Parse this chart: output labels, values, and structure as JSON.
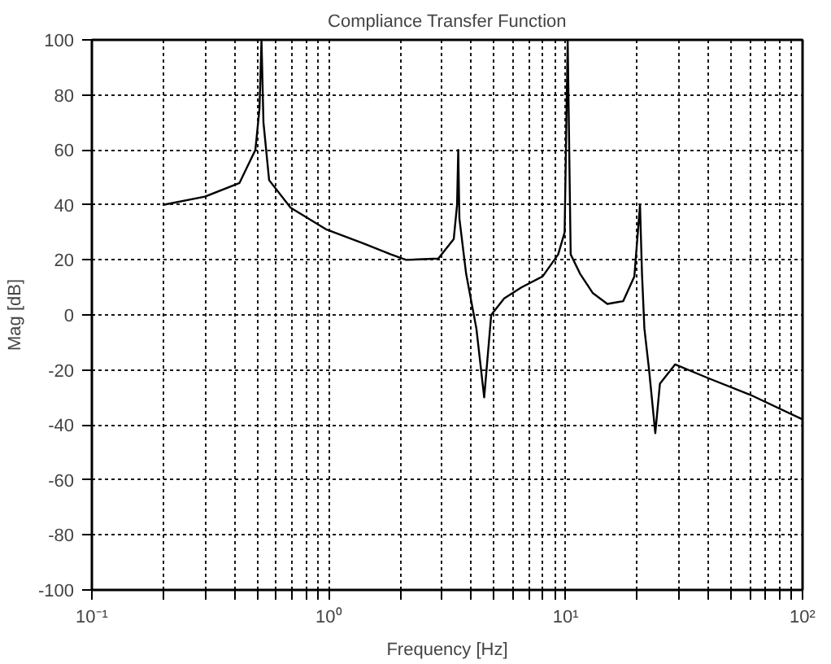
{
  "chart_data": {
    "type": "line",
    "title": "Compliance Transfer Function",
    "xlabel": "Frequency [Hz]",
    "ylabel": "Mag [dB]",
    "log": "x",
    "grid": true,
    "line_style": "solid",
    "xlim": [
      0.1,
      100
    ],
    "ylim": [
      -100,
      100
    ],
    "xticks": [
      {
        "value": 0.1,
        "label": "10⁻¹"
      },
      {
        "value": 0.2,
        "label": null
      },
      {
        "value": 0.3,
        "label": null
      },
      {
        "value": 0.4,
        "label": null
      },
      {
        "value": 0.5,
        "label": null
      },
      {
        "value": 0.6,
        "label": null
      },
      {
        "value": 0.7,
        "label": null
      },
      {
        "value": 0.8,
        "label": null
      },
      {
        "value": 0.9,
        "label": null
      },
      {
        "value": 1,
        "label": "10⁰"
      },
      {
        "value": 2,
        "label": null
      },
      {
        "value": 3,
        "label": null
      },
      {
        "value": 4,
        "label": null
      },
      {
        "value": 5,
        "label": null
      },
      {
        "value": 6,
        "label": null
      },
      {
        "value": 7,
        "label": null
      },
      {
        "value": 8,
        "label": null
      },
      {
        "value": 9,
        "label": null
      },
      {
        "value": 10,
        "label": "10¹"
      },
      {
        "value": 20,
        "label": null
      },
      {
        "value": 30,
        "label": null
      },
      {
        "value": 40,
        "label": null
      },
      {
        "value": 50,
        "label": null
      },
      {
        "value": 60,
        "label": null
      },
      {
        "value": 70,
        "label": null
      },
      {
        "value": 80,
        "label": null
      },
      {
        "value": 90,
        "label": null
      },
      {
        "value": 100,
        "label": "10²"
      }
    ],
    "yticks": [
      -100,
      -80,
      -60,
      -40,
      -20,
      0,
      20,
      40,
      60,
      80,
      100
    ],
    "series": [
      {
        "color": "#000000",
        "x": [
          0.2,
          0.3,
          0.42,
          0.49,
          0.51,
          0.52,
          0.53,
          0.56,
          0.69,
          0.98,
          1.4,
          1.83,
          2.12,
          2.9,
          3.37,
          3.48,
          3.52,
          3.56,
          3.8,
          4.2,
          4.53,
          4.85,
          5.5,
          6.5,
          8,
          9.3,
          9.9,
          10.2,
          10.5,
          11.5,
          13,
          15,
          17.5,
          19.5,
          20.6,
          21,
          21.5,
          22.5,
          23.9,
          25,
          29,
          40,
          60,
          100
        ],
        "values": [
          40,
          43,
          48,
          60,
          75,
          100,
          70,
          49,
          39,
          31,
          26,
          22,
          20,
          20.5,
          27.6,
          40,
          60,
          35,
          15,
          -5,
          -30,
          0,
          6,
          10,
          14,
          22,
          30,
          100,
          22,
          15,
          8,
          4,
          5,
          14,
          40,
          15,
          -5,
          -20,
          -43,
          -25,
          -18,
          -23,
          -29,
          -38
        ]
      }
    ]
  }
}
